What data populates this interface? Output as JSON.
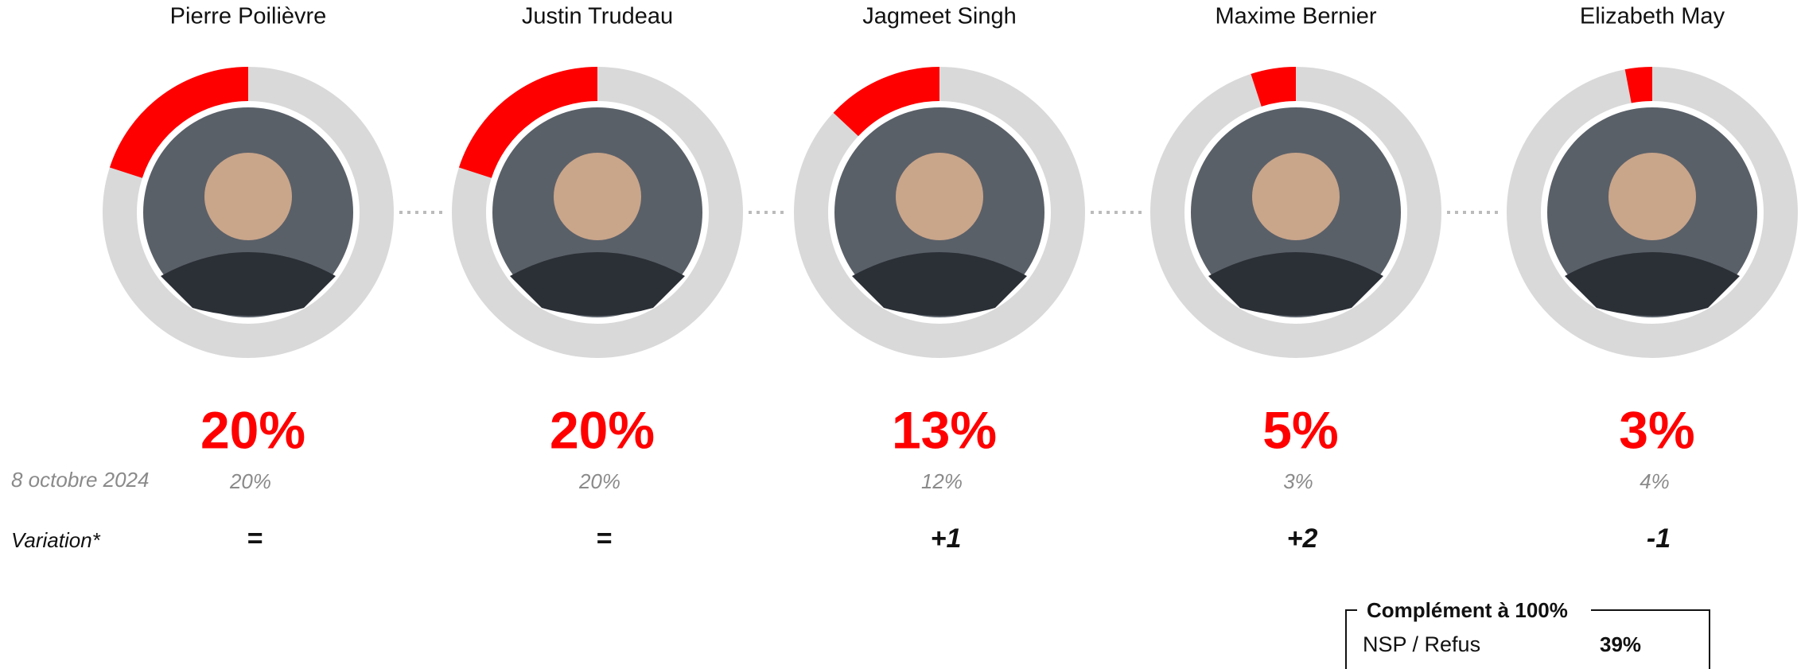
{
  "candidates": [
    {
      "name": "Pierre Poilièvre",
      "value": 20,
      "value_label": "20%",
      "previous": "20%",
      "variation": "="
    },
    {
      "name": "Justin Trudeau",
      "value": 20,
      "value_label": "20%",
      "previous": "20%",
      "variation": "="
    },
    {
      "name": "Jagmeet Singh",
      "value": 13,
      "value_label": "13%",
      "previous": "12%",
      "variation": "+1"
    },
    {
      "name": "Maxime Bernier",
      "value": 5,
      "value_label": "5%",
      "previous": "3%",
      "variation": "+2"
    },
    {
      "name": "Elizabeth May",
      "value": 3,
      "value_label": "3%",
      "previous": "4%",
      "variation": "-1"
    }
  ],
  "previous_label": "8 octobre 2024",
  "variation_label": "Variation*",
  "complement": {
    "title": "Complément à 100%",
    "label": "NSP / Refus",
    "value": "39%"
  },
  "colors": {
    "value": "#ff0000",
    "track": "#d9d9d9"
  }
}
